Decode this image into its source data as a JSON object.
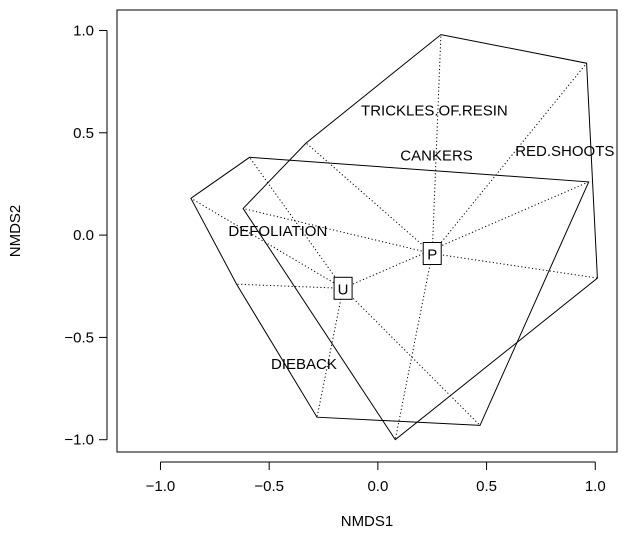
{
  "chart_data": {
    "type": "scatter",
    "xlabel": "NMDS1",
    "ylabel": "NMDS2",
    "xlim": [
      -1.2,
      1.1
    ],
    "ylim": [
      -1.06,
      1.1
    ],
    "xticks": [
      -1.0,
      -0.5,
      0.0,
      0.5,
      1.0
    ],
    "xtick_labels": [
      "−1.0",
      "−0.5",
      "0.0",
      "0.5",
      "1.0"
    ],
    "yticks": [
      -1.0,
      -0.5,
      0.0,
      0.5,
      1.0
    ],
    "ytick_labels": [
      "−1.0",
      "−0.5",
      "0.0",
      "0.5",
      "1.0"
    ],
    "grid": false,
    "centroids": [
      {
        "label": "U",
        "x": -0.16,
        "y": -0.26
      },
      {
        "label": "P",
        "x": 0.25,
        "y": -0.09
      }
    ],
    "hulls": [
      {
        "group": "U",
        "vertices": [
          {
            "x": -0.86,
            "y": 0.18
          },
          {
            "x": -0.59,
            "y": 0.38
          },
          {
            "x": 0.97,
            "y": 0.26
          },
          {
            "x": 0.47,
            "y": -0.93
          },
          {
            "x": -0.28,
            "y": -0.89
          },
          {
            "x": -0.65,
            "y": -0.24
          }
        ]
      },
      {
        "group": "P",
        "vertices": [
          {
            "x": 0.29,
            "y": 0.98
          },
          {
            "x": 0.96,
            "y": 0.84
          },
          {
            "x": 1.01,
            "y": -0.21
          },
          {
            "x": 0.08,
            "y": -1.0
          },
          {
            "x": -0.62,
            "y": 0.13
          },
          {
            "x": -0.33,
            "y": 0.45
          }
        ]
      }
    ],
    "variable_labels": [
      {
        "text": "TRICKLES.OF.RESIN",
        "x": 0.26,
        "y": 0.61
      },
      {
        "text": "CANKERS",
        "x": 0.27,
        "y": 0.39
      },
      {
        "text": "RED.SHOOTS",
        "x": 0.86,
        "y": 0.41
      },
      {
        "text": "DEFOLIATION",
        "x": -0.46,
        "y": 0.02
      },
      {
        "text": "DIEBACK",
        "x": -0.34,
        "y": -0.63
      }
    ]
  }
}
